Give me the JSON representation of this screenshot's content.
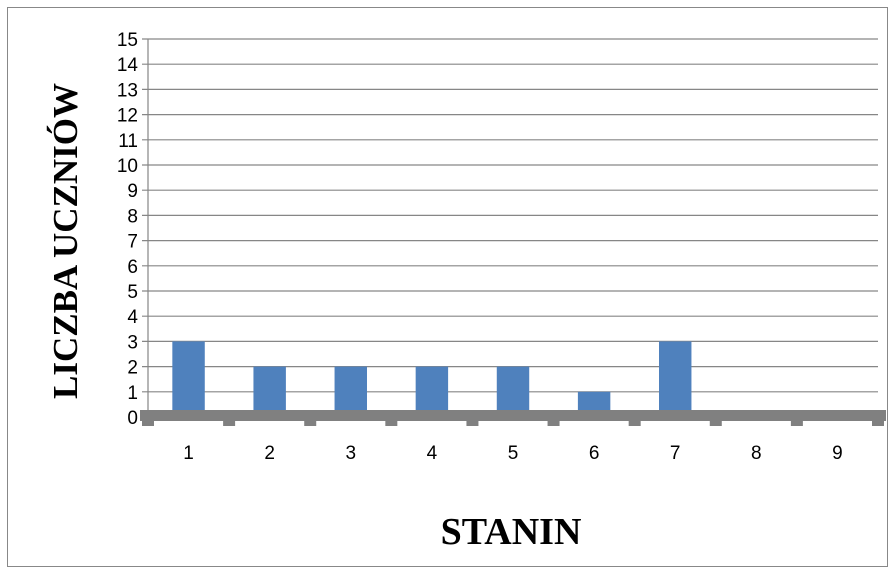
{
  "chart_data": {
    "type": "bar",
    "categories": [
      "1",
      "2",
      "3",
      "4",
      "5",
      "6",
      "7",
      "8",
      "9"
    ],
    "values": [
      3,
      2,
      2,
      2,
      2,
      1,
      3,
      0,
      0
    ],
    "xlabel": "STANIN",
    "ylabel": "LICZBA UCZNIÓW",
    "ylim": [
      0,
      15
    ],
    "yticks": [
      "0",
      "1",
      "2",
      "3",
      "4",
      "5",
      "6",
      "7",
      "8",
      "9",
      "10",
      "11",
      "12",
      "13",
      "14",
      "15"
    ],
    "grid": true,
    "legend": "none",
    "colors": {
      "bar": "#4F81BD",
      "grid": "#868686",
      "axis": "#808080"
    }
  }
}
